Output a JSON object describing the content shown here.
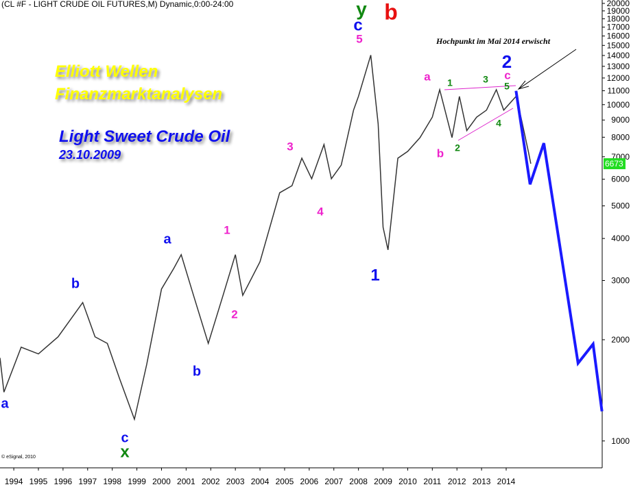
{
  "chart_data": {
    "type": "line",
    "title": "(CL #F - LIGHT CRUDE OIL FUTURES,M) Dynamic,0:00-24:00",
    "overlay_texts": [
      "Elliott Wellen",
      "Finanzmarktanalysen",
      "Light Sweet Crude Oil",
      "23.10.2009"
    ],
    "annotation": "Hochpunkt im Mai 2014 erwischt",
    "source": "© eSignal, 2010",
    "last_price": 6673,
    "wave_labels": [
      "a",
      "b",
      "c",
      "x",
      "a",
      "b",
      "1",
      "2",
      "3",
      "4",
      "5",
      "c",
      "y",
      "b",
      "1",
      "a",
      "b",
      "1",
      "2",
      "3",
      "4",
      "5",
      "c",
      "2"
    ],
    "log_scale": true,
    "xlim": [
      1993.44,
      2017.9
    ],
    "xticks": [
      1994,
      1995,
      1996,
      1997,
      1998,
      1999,
      2000,
      2001,
      2002,
      2003,
      2004,
      2005,
      2006,
      2007,
      2008,
      2009,
      2010,
      2011,
      2012,
      2013,
      2014
    ],
    "ylim": [
      832,
      20470
    ],
    "yticks": [
      1000,
      2000,
      3000,
      4000,
      5000,
      6000,
      7000,
      8000,
      9000,
      10000,
      11000,
      12000,
      13000,
      14000,
      15000,
      16000,
      17000,
      18000,
      19000,
      20000
    ],
    "price": {
      "color": "#333333",
      "x": [
        1993.44,
        1993.6,
        1994.3,
        1995.0,
        1995.8,
        1996.8,
        1997.3,
        1997.8,
        1998.3,
        1998.9,
        1999.4,
        2000.0,
        2000.5,
        2000.8,
        2001.3,
        2001.9,
        2002.5,
        2003.0,
        2003.3,
        2004.0,
        2004.8,
        2005.3,
        2005.7,
        2006.1,
        2006.6,
        2006.9,
        2007.3,
        2007.8,
        2008.0,
        2008.5,
        2008.8,
        2009.0,
        2009.2,
        2009.6,
        2010.0,
        2010.5,
        2011.0,
        2011.3,
        2011.8,
        2012.1,
        2012.4,
        2012.8,
        2013.2,
        2013.6,
        2013.9,
        2014.4,
        2014.6,
        2014.9,
        2015.0
      ],
      "values": [
        1766,
        1397,
        1900,
        1815,
        2040,
        2580,
        2040,
        1950,
        1530,
        1160,
        1690,
        2830,
        3260,
        3580,
        2710,
        1950,
        2710,
        3580,
        2710,
        3410,
        5470,
        5740,
        6930,
        6020,
        7610,
        6020,
        6610,
        9630,
        10580,
        14040,
        8770,
        4320,
        3700,
        6930,
        7260,
        7980,
        9180,
        11080,
        7980,
        10580,
        8370,
        9180,
        9630,
        11080,
        9630,
        10580,
        9180,
        7260,
        6673
      ]
    },
    "projection": {
      "color": "#1a1aff",
      "x": [
        2014.4,
        2014.97,
        2015.53,
        2016.92,
        2017.53,
        2017.89
      ],
      "values": [
        10990,
        5795,
        7680,
        1703,
        1941,
        1225
      ]
    }
  }
}
